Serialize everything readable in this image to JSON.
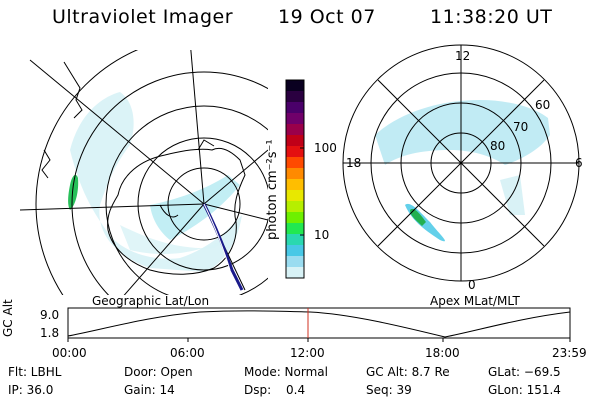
{
  "header": {
    "instrument": "Ultraviolet Imager",
    "date": "19 Oct 07",
    "time": "11:38:20 UT"
  },
  "left_panel": {
    "label": "Geographic Lat/Lon"
  },
  "right_panel": {
    "label": "Apex MLat/MLT",
    "mlt_labels": {
      "top": "12",
      "left": "18",
      "right": "6",
      "bottom": "0"
    },
    "lat_labels": [
      "60",
      "70",
      "80"
    ]
  },
  "colorbar": {
    "unit_label": "photon cm⁻²s⁻¹",
    "ticks": [
      "100",
      "10"
    ],
    "colors": [
      "#0a0020",
      "#2a0040",
      "#4a006a",
      "#70006a",
      "#9a004a",
      "#c00018",
      "#e41010",
      "#ff4a00",
      "#ff8a00",
      "#ffbe00",
      "#e8e800",
      "#b6ef00",
      "#6ef000",
      "#22e850",
      "#2ad8b0",
      "#48c8e6",
      "#9adcf0",
      "#d8f2f6"
    ]
  },
  "timeline": {
    "y_label": "GC Alt",
    "y_ticks": [
      "9.0",
      "1.8"
    ],
    "x_ticks": [
      "00:00",
      "06:00",
      "12:00",
      "18:00",
      "23:59"
    ],
    "marker_color": "#d03020"
  },
  "status": {
    "filter": "Flt: LBHL",
    "ip": "IP: 36.0",
    "door": "Door: Open",
    "gain": "Gain: 14",
    "mode": "Mode: Normal",
    "dsp_label": "Dsp:",
    "dsp_value": "0.4",
    "gc_alt": "GC Alt: 8.7 Re",
    "seq": "Seq: 39",
    "glat": "GLat: −69.5",
    "glon": "GLon: 151.4"
  }
}
